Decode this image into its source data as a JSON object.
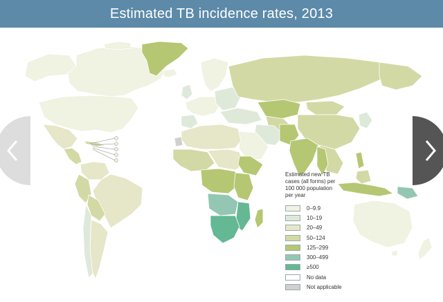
{
  "header": {
    "title": "Estimated TB incidence rates, 2013"
  },
  "navigation": {
    "prev_icon": "chevron-left-icon",
    "next_icon": "chevron-right-icon"
  },
  "legend": {
    "title_lines": [
      "Estimated new TB",
      "cases (all forms) per",
      "100 000 population",
      "per year"
    ],
    "items": [
      {
        "label": "0–9.9",
        "color": "#f0f2e2"
      },
      {
        "label": "10–19",
        "color": "#dfe9da"
      },
      {
        "label": "20–49",
        "color": "#e6e6c8"
      },
      {
        "label": "50–124",
        "color": "#d3d9a4"
      },
      {
        "label": "125–299",
        "color": "#b5c772"
      },
      {
        "label": "300–499",
        "color": "#93c7b3"
      },
      {
        "label": "≥500",
        "color": "#64b894"
      },
      {
        "label": "No data",
        "color": "#ffffff"
      },
      {
        "label": "Not applicable",
        "color": "#cfcfcf"
      }
    ]
  },
  "colors": {
    "title_bar": "#5d8aa8",
    "ocean": "#ffffff",
    "country_border": "#ffffff",
    "nav_button": "#dddddd",
    "nav_button_active": "#555555"
  }
}
